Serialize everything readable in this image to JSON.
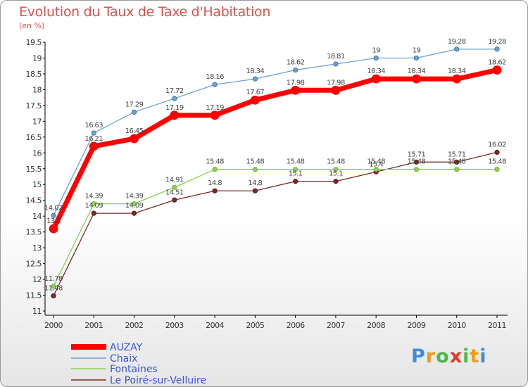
{
  "title": "Evolution du Taux de Taxe d'Habitation",
  "unit": "(en %)",
  "logo": {
    "letters": [
      "P",
      "r",
      "o",
      "x",
      "i",
      "t",
      "i"
    ],
    "colors": [
      "#3b8fd9",
      "#f09a1a",
      "#4db848",
      "#e23a2b",
      "#4db848",
      "#f09a1a",
      "#3b8fd9"
    ]
  },
  "chart_data": {
    "type": "line",
    "title": "Evolution du Taux de Taxe d'Habitation",
    "ylabel": "(en %)",
    "xlabel": "",
    "x": [
      "2000",
      "2001",
      "2002",
      "2003",
      "2004",
      "2005",
      "2006",
      "2007",
      "2008",
      "2009",
      "2010",
      "2011"
    ],
    "ylim": [
      11,
      19.5
    ],
    "yticks": [
      "11",
      "11.5",
      "12",
      "12.5",
      "13",
      "13.5",
      "14",
      "14.5",
      "15",
      "15.5",
      "16",
      "16.5",
      "17",
      "17.5",
      "18",
      "18.5",
      "19",
      "19.5"
    ],
    "grid": false,
    "legend": "bottom-left",
    "series": [
      {
        "name": "AUZAY",
        "color": "#ff0000",
        "values": [
          13.6,
          16.21,
          16.45,
          17.19,
          17.19,
          17.67,
          17.98,
          17.98,
          18.34,
          18.34,
          18.34,
          18.62
        ],
        "labels": [
          "13.6",
          "16.21",
          "16.45",
          "17.19",
          "17.19",
          "17.67",
          "17.98",
          "17.98",
          "18.34",
          "18.34",
          "18.34",
          "18.62"
        ]
      },
      {
        "name": "Chaix",
        "color": "#6fa0d0",
        "values": [
          14.02,
          16.63,
          17.29,
          17.72,
          18.16,
          18.34,
          18.62,
          18.81,
          19,
          19,
          19.28,
          19.28
        ],
        "labels": [
          "14.02",
          "16.63",
          "17.29",
          "17.72",
          "18.16",
          "18.34",
          "18.62",
          "18.81",
          "19",
          "19",
          "19.28",
          "19.28"
        ]
      },
      {
        "name": "Fontaines",
        "color": "#8ed050",
        "values": [
          11.78,
          14.39,
          14.39,
          14.91,
          15.48,
          15.48,
          15.48,
          15.48,
          15.48,
          15.48,
          15.48,
          15.48
        ],
        "labels": [
          "11.78",
          "14.39",
          "14.39",
          "14.91",
          "15.48",
          "15.48",
          "15.48",
          "15.48",
          "15.48",
          "15.48",
          "15.48",
          "15.48"
        ]
      },
      {
        "name": "Le Poiré-sur-Velluire",
        "color": "#7a2a2a",
        "values": [
          11.48,
          14.09,
          14.09,
          14.51,
          14.8,
          14.8,
          15.1,
          15.1,
          15.4,
          15.71,
          15.71,
          16.02
        ],
        "labels": [
          "11.48",
          "14.09",
          "14.09",
          "14.51",
          "14.8",
          "14.8",
          "15.1",
          "15.1",
          "15.4",
          "15.71",
          "15.71",
          "16.02"
        ]
      }
    ]
  }
}
